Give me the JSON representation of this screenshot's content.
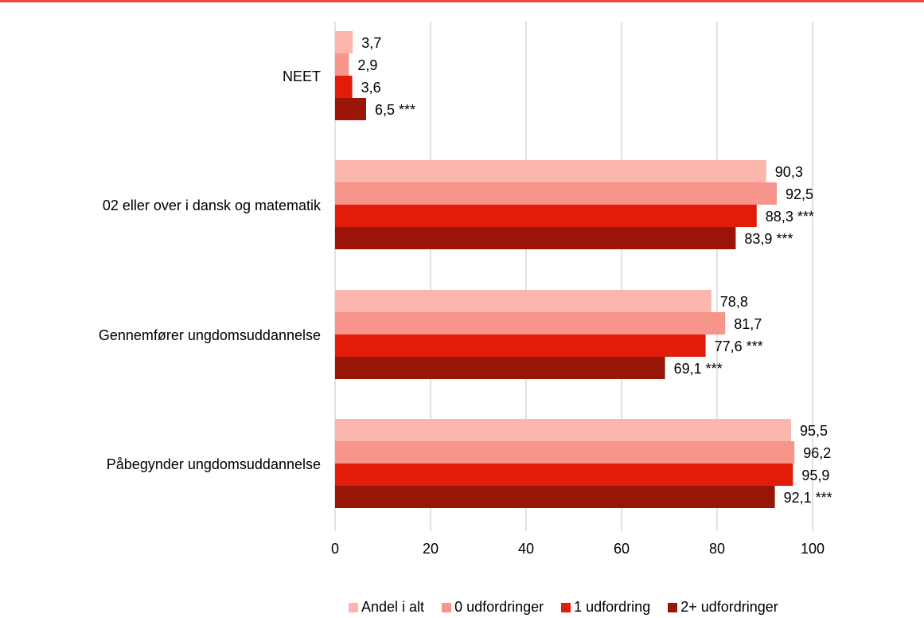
{
  "chart_data": {
    "type": "bar",
    "orientation": "horizontal",
    "categories": [
      "NEET",
      "02 eller over i dansk og matematik",
      "Gennemfører ungdomsuddannelse",
      "Påbegynder ungdomsuddannelse"
    ],
    "series": [
      {
        "name": "Andel i alt",
        "color": "#fbb6ae",
        "values": [
          3.7,
          90.3,
          78.8,
          95.5
        ],
        "labels": [
          "3,7",
          "90,3",
          "78,8",
          "95,5"
        ]
      },
      {
        "name": "0 udfordringer",
        "color": "#f8958a",
        "values": [
          2.9,
          92.5,
          81.7,
          96.2
        ],
        "labels": [
          "2,9",
          "92,5",
          "81,7",
          "96,2"
        ]
      },
      {
        "name": "1 udfordring",
        "color": "#e11d0a",
        "values": [
          3.6,
          88.3,
          77.6,
          95.9
        ],
        "labels": [
          "3,6",
          "88,3 ***",
          "77,6 ***",
          "95,9"
        ]
      },
      {
        "name": "2+ udfordringer",
        "color": "#991508",
        "values": [
          6.5,
          83.9,
          69.1,
          92.1
        ],
        "labels": [
          "6,5 ***",
          "83,9 ***",
          "69,1 ***",
          "92,1 ***"
        ]
      }
    ],
    "xlim": [
      0,
      100
    ],
    "xticks": [
      "0",
      "20",
      "40",
      "60",
      "80",
      "100"
    ],
    "grid": true,
    "legend": "bottom",
    "accent_color": "#e8473d"
  }
}
